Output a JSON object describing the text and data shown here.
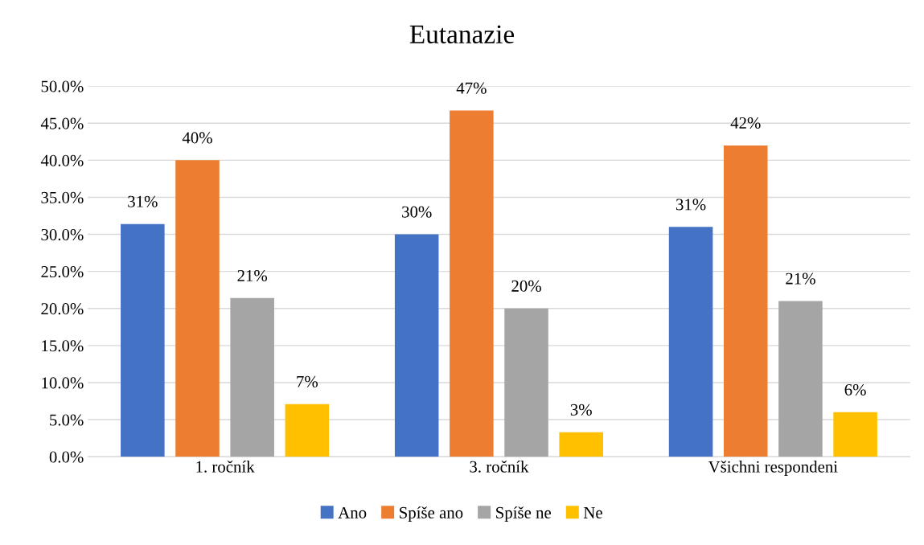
{
  "chart_data": {
    "type": "bar",
    "title": "Eutanazie",
    "categories": [
      "1. ročník",
      "3. ročník",
      "Všichni respondeni"
    ],
    "series": [
      {
        "name": "Ano",
        "color": "#4472c4",
        "values": [
          31.4,
          30.0,
          31.0
        ],
        "value_labels": [
          "31%",
          "30%",
          "31%"
        ]
      },
      {
        "name": "Spíše ano",
        "color": "#ed7d31",
        "values": [
          40.0,
          46.7,
          42.0
        ],
        "value_labels": [
          "40%",
          "47%",
          "42%"
        ]
      },
      {
        "name": "Spíše ne",
        "color": "#a5a5a5",
        "values": [
          21.4,
          20.0,
          21.0
        ],
        "value_labels": [
          "21%",
          "20%",
          "21%"
        ]
      },
      {
        "name": "Ne",
        "color": "#ffc000",
        "values": [
          7.1,
          3.3,
          6.0
        ],
        "value_labels": [
          "7%",
          "3%",
          "6%"
        ]
      }
    ],
    "ylim": [
      0,
      50
    ],
    "yticks": [
      {
        "value": 0,
        "label": "0.0%"
      },
      {
        "value": 5,
        "label": "5.0%"
      },
      {
        "value": 10,
        "label": "10.0%"
      },
      {
        "value": 15,
        "label": "15.0%"
      },
      {
        "value": 20,
        "label": "20.0%"
      },
      {
        "value": 25,
        "label": "25.0%"
      },
      {
        "value": 30,
        "label": "30.0%"
      },
      {
        "value": 35,
        "label": "35.0%"
      },
      {
        "value": 40,
        "label": "40.0%"
      },
      {
        "value": 45,
        "label": "45.0%"
      },
      {
        "value": 50,
        "label": "50.0%"
      }
    ],
    "grid": "y",
    "legend": "bottom"
  }
}
